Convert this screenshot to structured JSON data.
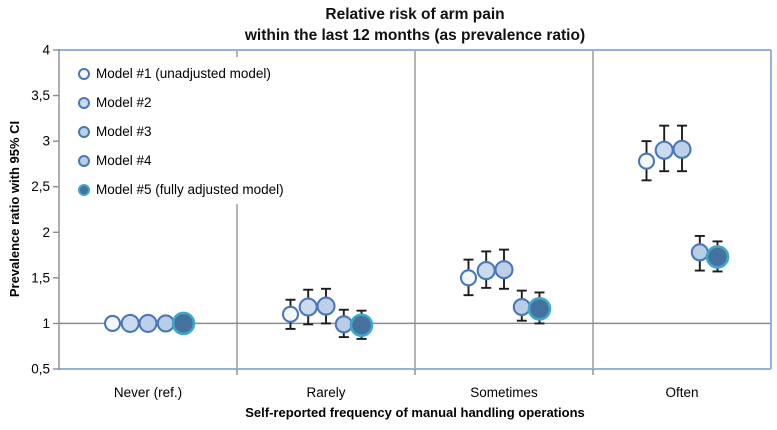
{
  "title": {
    "line1": "Relative risk of arm pain",
    "line2": "within the last 12 months (as prevalence ratio)"
  },
  "y_axis": {
    "label": "Prevalence ratio with 95% CI",
    "ticks": [
      {
        "value": 4,
        "label": "4"
      },
      {
        "value": 3.5,
        "label": "3,5"
      },
      {
        "value": 3,
        "label": "3"
      },
      {
        "value": 2.5,
        "label": "2,5"
      },
      {
        "value": 2,
        "label": "2"
      },
      {
        "value": 1.5,
        "label": "1,5"
      },
      {
        "value": 1,
        "label": "1"
      },
      {
        "value": 0.5,
        "label": "0,5"
      }
    ]
  },
  "x_axis": {
    "label": "Self-reported frequency of manual handling operations",
    "categories": [
      "Never (ref.)",
      "Rarely",
      "Sometimes",
      "Often"
    ]
  },
  "legend": {
    "items": [
      {
        "label": "Model #1 (unadjusted model)"
      },
      {
        "label": "Model #2"
      },
      {
        "label": "Model #3"
      },
      {
        "label": "Model #4"
      },
      {
        "label": "Model #5 (fully adjusted model)"
      }
    ]
  },
  "colors": {
    "plot_border": "#95B3D7",
    "grid_line": "#8C8C8C",
    "error_bar": "#1C1C1C",
    "text": "#000000"
  },
  "chart_data": {
    "type": "scatter",
    "title": "Relative risk of arm pain within the last 12 months (as prevalence ratio)",
    "xlabel": "Self-reported frequency of manual handling operations",
    "ylabel": "Prevalence ratio with 95% CI",
    "ylim": [
      0.5,
      4
    ],
    "reference_line": 1.0,
    "grid": false,
    "legend_position": "upper-left-inside",
    "categories": [
      "Never (ref.)",
      "Rarely",
      "Sometimes",
      "Often"
    ],
    "series": [
      {
        "name": "Model #1 (unadjusted model)",
        "marker": {
          "fill": "#F3F7FC",
          "stroke": "#4A77B7",
          "size": 15
        },
        "values": [
          1.0,
          1.1,
          1.5,
          2.78
        ],
        "ci_low": [
          1.0,
          0.94,
          1.31,
          2.57
        ],
        "ci_high": [
          1.0,
          1.26,
          1.7,
          3.0
        ]
      },
      {
        "name": "Model #2",
        "marker": {
          "fill": "#CCDAEE",
          "stroke": "#4A77B7",
          "size": 17
        },
        "values": [
          1.0,
          1.18,
          1.58,
          2.9
        ],
        "ci_low": [
          1.0,
          0.99,
          1.39,
          2.67
        ],
        "ci_high": [
          1.0,
          1.37,
          1.79,
          3.17
        ]
      },
      {
        "name": "Model #3",
        "marker": {
          "fill": "#BDD0E8",
          "stroke": "#4A77B7",
          "size": 17
        },
        "values": [
          1.0,
          1.19,
          1.59,
          2.91
        ],
        "ci_low": [
          1.0,
          1.0,
          1.38,
          2.67
        ],
        "ci_high": [
          1.0,
          1.38,
          1.81,
          3.17
        ]
      },
      {
        "name": "Model #4",
        "marker": {
          "fill": "#B9CDE6",
          "stroke": "#4A77B7",
          "size": 16
        },
        "values": [
          1.0,
          0.99,
          1.18,
          1.78
        ],
        "ci_low": [
          1.0,
          0.85,
          1.03,
          1.58
        ],
        "ci_high": [
          1.0,
          1.15,
          1.36,
          1.96
        ]
      },
      {
        "name": "Model #5 (fully adjusted model)",
        "marker": {
          "fill": "#44719E",
          "stroke": "#3FA8C6",
          "size": 21
        },
        "values": [
          1.0,
          0.98,
          1.16,
          1.73
        ],
        "ci_low": [
          1.0,
          0.83,
          1.0,
          1.57
        ],
        "ci_high": [
          1.0,
          1.14,
          1.34,
          1.9
        ]
      }
    ]
  }
}
